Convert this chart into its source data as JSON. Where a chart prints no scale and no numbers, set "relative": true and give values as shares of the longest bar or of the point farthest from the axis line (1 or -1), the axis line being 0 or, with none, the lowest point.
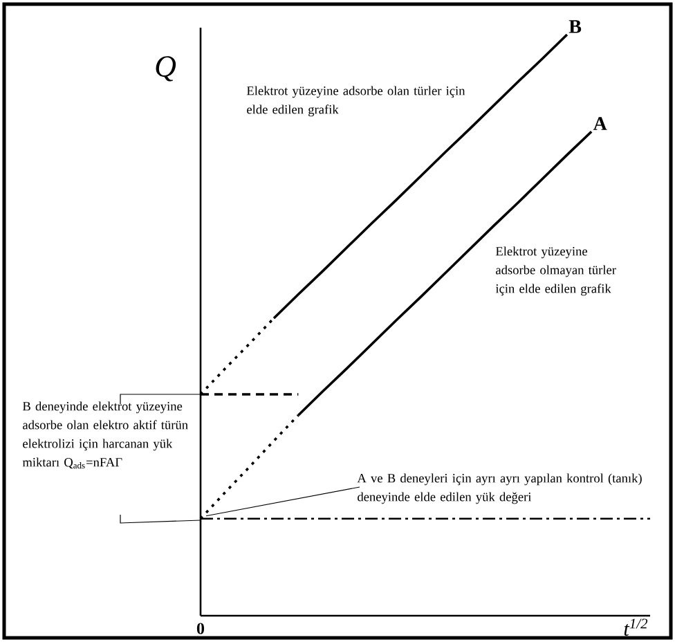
{
  "chart_data": {
    "type": "line",
    "relative": true,
    "xlabel": "t$^{1/2}$",
    "ylabel": "Q",
    "categories": [
      null,
      null,
      null,
      null,
      null,
      null,
      null,
      null,
      null,
      null,
      null,
      null,
      null,
      null,
      null,
      null,
      null,
      null,
      null
    ],
    "series": [
      {
        "name": "A",
        "color": "#000000",
        "values": [
          null,
          null,
          null,
          null,
          0.345,
          0.386,
          0.426,
          0.467,
          0.508,
          0.548,
          0.589,
          0.63,
          0.671,
          0.711,
          0.752,
          0.793,
          0.833,
          null,
          null
        ]
      },
      {
        "color": "#000000",
        "line_style": "dotted",
        "values": [
          0.167,
          0.212,
          0.256,
          0.301,
          0.345,
          null,
          null,
          null,
          null,
          null,
          null,
          null,
          null,
          null,
          null,
          null,
          null,
          null,
          null
        ]
      },
      {
        "name": "B",
        "color": "#000000",
        "values": [
          null,
          null,
          null,
          0.512,
          0.553,
          0.593,
          0.634,
          0.675,
          0.715,
          0.756,
          0.797,
          0.837,
          0.878,
          0.919,
          0.959,
          1,
          null,
          null,
          null
        ]
      },
      {
        "color": "#000000",
        "line_style": "dotted",
        "values": [
          0.381,
          0.425,
          0.468,
          0.512,
          null,
          null,
          null,
          null,
          null,
          null,
          null,
          null,
          null,
          null,
          null,
          null,
          null,
          null,
          null
        ]
      },
      {
        "color": "#000000",
        "line_style": "dashed",
        "values": [
          0.381,
          0.381,
          0.381,
          0.381,
          0.381,
          null,
          null,
          null,
          null,
          null,
          null,
          null,
          null,
          null,
          null,
          null,
          null,
          null,
          null
        ]
      }
    ],
    "ref_lines": [
      {
        "axis": "y",
        "value": 0.167,
        "line_style": "dashdot",
        "color": "#000000"
      }
    ],
    "annotations": [
      "0",
      "Elektrot yüzeyine adsorbe olan türler için elde edilen grafik",
      "Elektrot yüzeyine adsorbe olmayan türler için elde edilen grafik",
      "B deneyinde elektrot yüzeyine adsorbe olan elektro aktif türün elektrolizi için harcanan yük miktarı Q$_{ads}$=nFAΓ",
      {
        "text": "A ve B deneyleri için ayrı ayrı yapılan kontrol (tanık) deneyinde elde edilen yük değeri",
        "y": 0.167
      }
    ]
  }
}
